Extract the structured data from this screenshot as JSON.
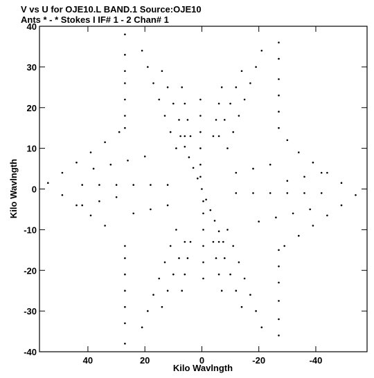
{
  "chart_data": {
    "type": "scatter",
    "title_line1": "V vs U for OJE10.L BAND.1   Source:OJE10",
    "title_line2": "Ants * - *    Stokes I  IF# 1 - 2  Chan# 1",
    "xlabel": "Kilo Wavlngth",
    "ylabel": "Kilo Wavlngth",
    "xlim": [
      57,
      -58
    ],
    "ylim": [
      -40,
      40
    ],
    "x_ticks": [
      40,
      20,
      0,
      -20,
      -40
    ],
    "x_tick_labels": [
      "40",
      "20",
      "0",
      "-20",
      "-40"
    ],
    "y_ticks": [
      40,
      30,
      20,
      10,
      0,
      -10,
      -20,
      -30,
      -40
    ],
    "y_tick_labels": [
      "40",
      "30",
      "20",
      "10",
      "0",
      "-10",
      "-20",
      "-30",
      "-40"
    ],
    "grid": false,
    "marker_color": "#000000",
    "series": [
      {
        "points": [
          [
            0,
            0
          ],
          [
            1.5,
            2.6
          ],
          [
            3,
            5.2
          ],
          [
            4.5,
            7.8
          ],
          [
            6,
            10.4
          ],
          [
            7.5,
            13
          ],
          [
            -1.5,
            -2.6
          ],
          [
            -3,
            -5.2
          ],
          [
            -4.5,
            -7.8
          ],
          [
            -6,
            -10.4
          ],
          [
            -7.5,
            -13
          ],
          [
            27,
            38
          ],
          [
            27,
            33
          ],
          [
            27,
            29
          ],
          [
            27,
            26
          ],
          [
            27,
            22
          ],
          [
            27,
            18
          ],
          [
            27,
            15
          ],
          [
            -27,
            -36
          ],
          [
            -27,
            -32
          ],
          [
            -27,
            -27.5
          ],
          [
            -27,
            -23
          ],
          [
            -27,
            -19
          ],
          [
            -27,
            -15
          ],
          [
            -27,
            36
          ],
          [
            -27,
            32
          ],
          [
            -27,
            27
          ],
          [
            -27,
            23
          ],
          [
            -27,
            19
          ],
          [
            -27,
            15
          ],
          [
            27,
            -38
          ],
          [
            27,
            -33
          ],
          [
            27,
            -29
          ],
          [
            27,
            -25
          ],
          [
            27,
            -21
          ],
          [
            27,
            -17
          ],
          [
            27,
            -14
          ],
          [
            0.5,
            22
          ],
          [
            0.5,
            18
          ],
          [
            0.5,
            14
          ],
          [
            0.5,
            10
          ],
          [
            0.5,
            6
          ],
          [
            0.5,
            3
          ],
          [
            -0.5,
            -22
          ],
          [
            -0.5,
            -18
          ],
          [
            -0.5,
            -14
          ],
          [
            -0.5,
            -10
          ],
          [
            -0.5,
            -6
          ],
          [
            -0.5,
            -3
          ],
          [
            54,
            1.5
          ],
          [
            49,
            4
          ],
          [
            44,
            6.5
          ],
          [
            39,
            9
          ],
          [
            34,
            11.5
          ],
          [
            29,
            14
          ],
          [
            -54,
            -1.5
          ],
          [
            -49,
            -4
          ],
          [
            -44,
            -6.5
          ],
          [
            -39,
            -9
          ],
          [
            -34,
            -11.5
          ],
          [
            -29,
            -14
          ],
          [
            49,
            -1.5
          ],
          [
            44,
            -4
          ],
          [
            39,
            -6.5
          ],
          [
            34,
            -9
          ],
          [
            -49,
            1.5
          ],
          [
            -44,
            4
          ],
          [
            -39,
            6.5
          ],
          [
            -34,
            9
          ],
          [
            -30,
            12
          ],
          [
            21,
            34
          ],
          [
            19,
            30
          ],
          [
            17,
            26
          ],
          [
            15,
            22
          ],
          [
            13,
            18
          ],
          [
            11,
            14
          ],
          [
            9,
            10
          ],
          [
            -21,
            -34
          ],
          [
            -19,
            -30
          ],
          [
            -17,
            -26
          ],
          [
            -15,
            -22
          ],
          [
            -13,
            -18
          ],
          [
            -11,
            -14
          ],
          [
            -9,
            -10
          ],
          [
            -21,
            34
          ],
          [
            -19,
            30
          ],
          [
            -17,
            26
          ],
          [
            -15,
            22
          ],
          [
            -13,
            18
          ],
          [
            -11,
            14
          ],
          [
            -9,
            10
          ],
          [
            21,
            -34
          ],
          [
            19,
            -30
          ],
          [
            17,
            -26
          ],
          [
            15,
            -22
          ],
          [
            13,
            -18
          ],
          [
            11,
            -14
          ],
          [
            9,
            -10
          ],
          [
            14,
            29
          ],
          [
            12,
            25
          ],
          [
            10,
            21
          ],
          [
            8,
            17
          ],
          [
            6,
            13
          ],
          [
            -14,
            -29
          ],
          [
            -12,
            -25
          ],
          [
            -10,
            -21
          ],
          [
            -8,
            -17
          ],
          [
            -6,
            -13
          ],
          [
            -14,
            29
          ],
          [
            -12,
            25
          ],
          [
            -10,
            21
          ],
          [
            -8,
            17
          ],
          [
            -6,
            13
          ],
          [
            14,
            -29
          ],
          [
            12,
            -25
          ],
          [
            10,
            -21
          ],
          [
            8,
            -17
          ],
          [
            6,
            -13
          ],
          [
            7,
            25
          ],
          [
            6,
            21
          ],
          [
            5,
            17
          ],
          [
            4,
            13
          ],
          [
            -7,
            -25
          ],
          [
            -6,
            -21
          ],
          [
            -5,
            -17
          ],
          [
            -4,
            -13
          ],
          [
            -7,
            25
          ],
          [
            -6,
            21
          ],
          [
            -5,
            17
          ],
          [
            -4,
            13
          ],
          [
            7,
            -25
          ],
          [
            6,
            -21
          ],
          [
            5,
            -17
          ],
          [
            4,
            -13
          ],
          [
            42,
            1
          ],
          [
            36,
            1
          ],
          [
            30,
            1
          ],
          [
            24,
            1
          ],
          [
            18,
            1
          ],
          [
            12,
            1
          ],
          [
            -42,
            -1
          ],
          [
            -36,
            -1
          ],
          [
            -30,
            -1
          ],
          [
            -24,
            -1
          ],
          [
            -18,
            -1
          ],
          [
            -12,
            -1
          ],
          [
            42,
            -4
          ],
          [
            36,
            -3
          ],
          [
            30,
            -2
          ],
          [
            -42,
            4
          ],
          [
            -36,
            3
          ],
          [
            -30,
            2
          ],
          [
            38,
            5
          ],
          [
            32,
            6
          ],
          [
            26,
            7
          ],
          [
            20,
            8
          ],
          [
            -38,
            -5
          ],
          [
            -32,
            -6
          ],
          [
            -26,
            -7
          ],
          [
            -20,
            -8
          ],
          [
            24,
            -6
          ],
          [
            18,
            -5
          ],
          [
            12,
            -4
          ],
          [
            -24,
            6
          ],
          [
            -18,
            5
          ],
          [
            -12,
            4
          ]
        ]
      }
    ]
  }
}
